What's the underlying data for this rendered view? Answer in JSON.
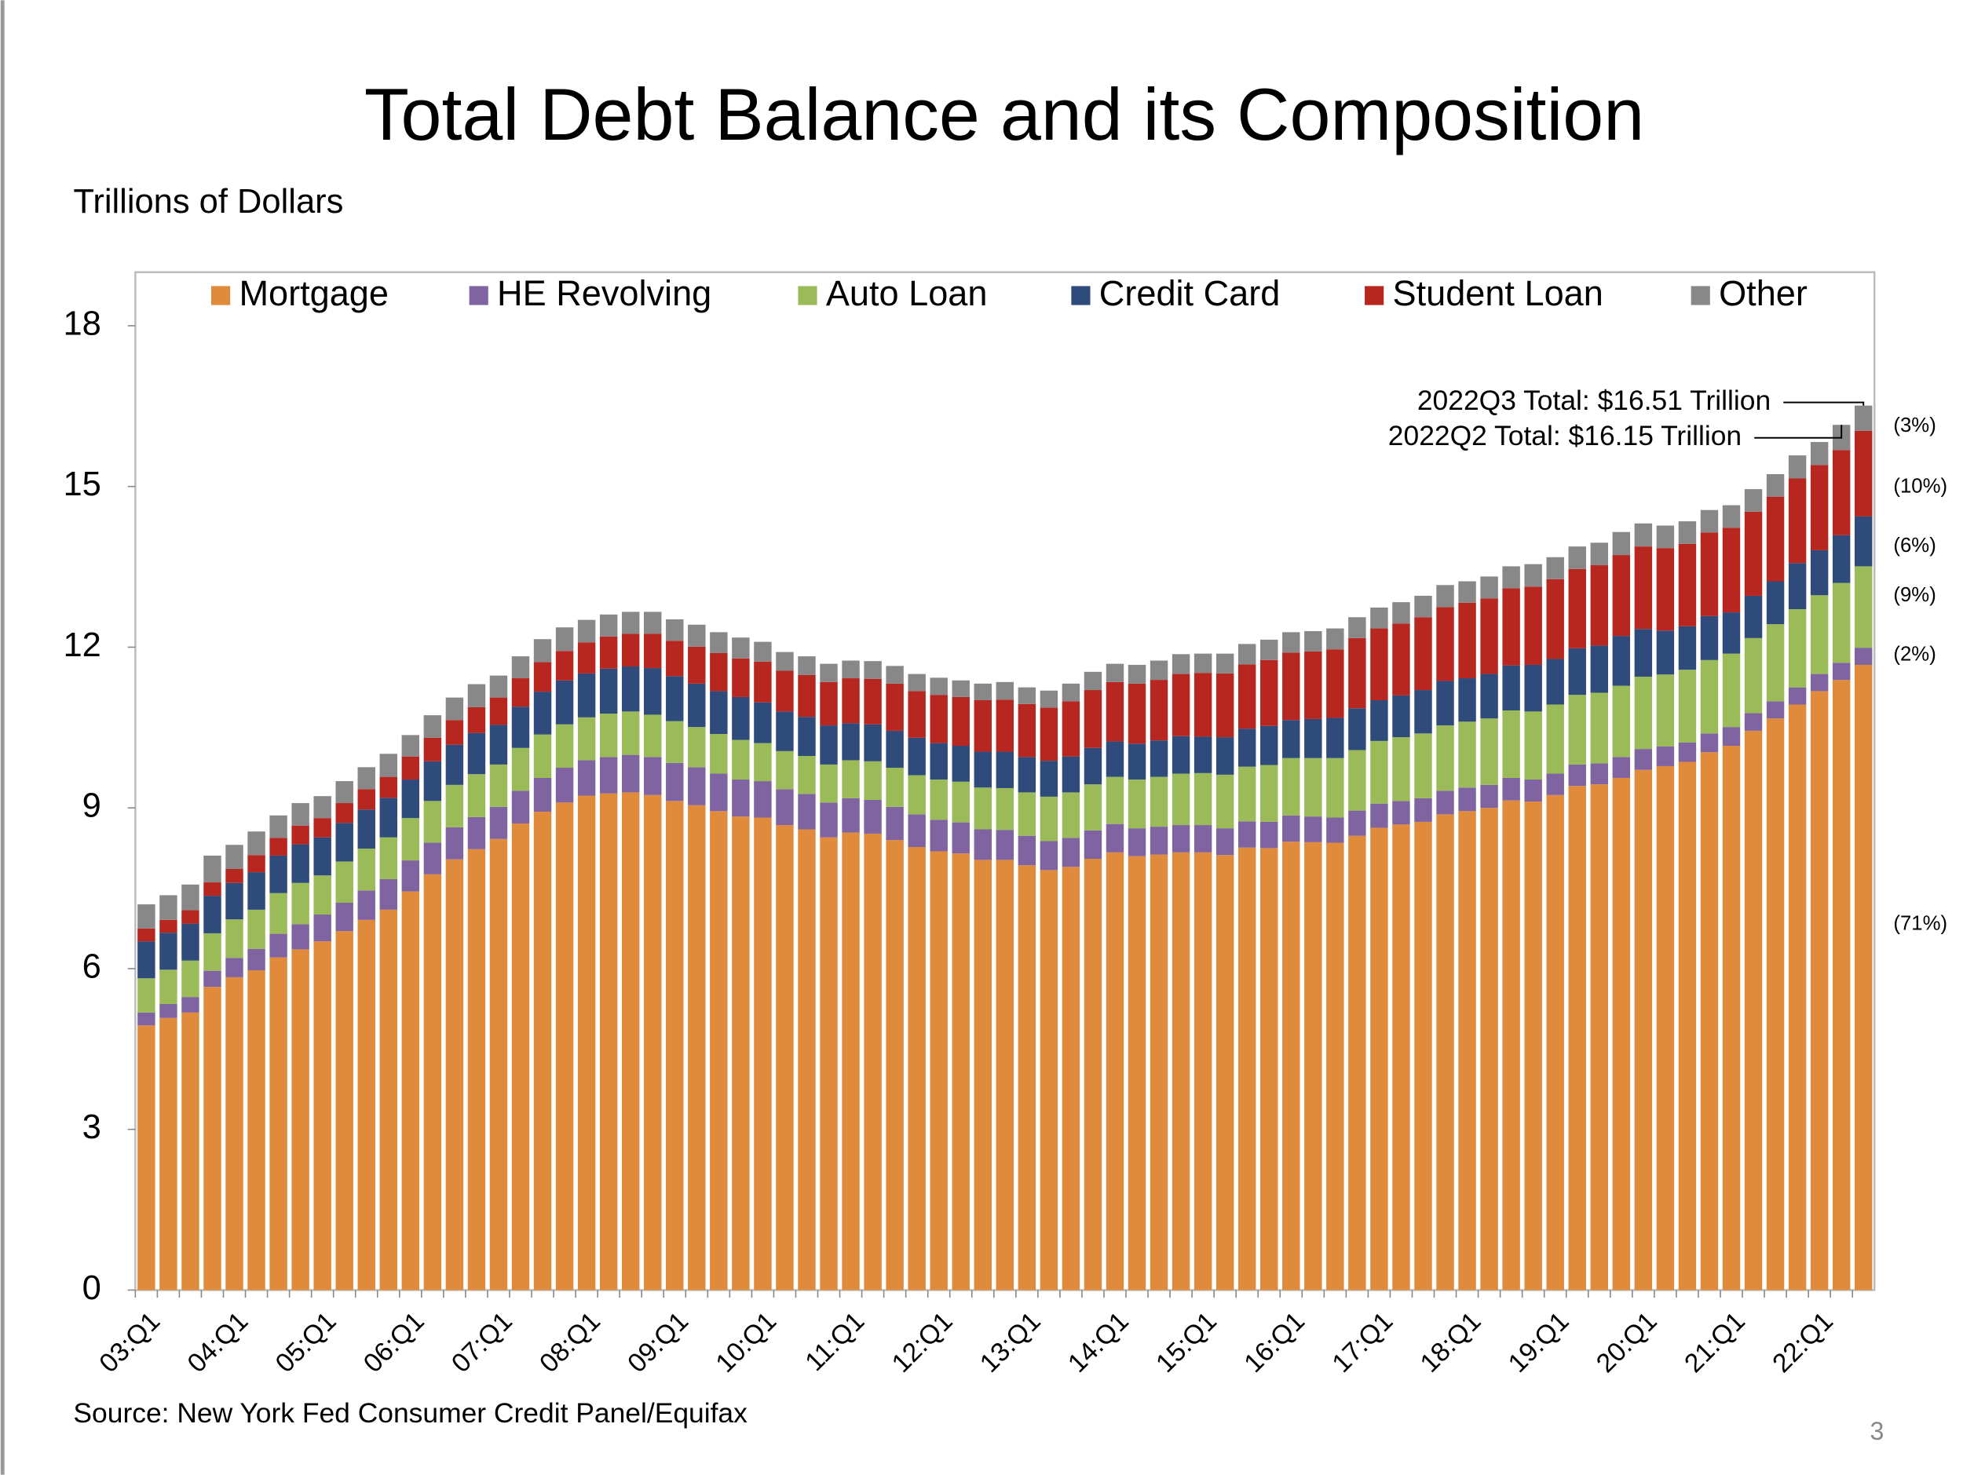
{
  "chart_data": {
    "type": "stacked_bar",
    "title": "Total Debt Balance and its Composition",
    "y_label": "Trillions of Dollars",
    "source": "Source: New York Fed Consumer Credit Panel/Equifax",
    "page_number": "3",
    "categories": [
      "03:Q1",
      null,
      null,
      null,
      "04:Q1",
      null,
      null,
      null,
      "05:Q1",
      null,
      null,
      null,
      "06:Q1",
      null,
      null,
      null,
      "07:Q1",
      null,
      null,
      null,
      "08:Q1",
      null,
      null,
      null,
      "09:Q1",
      null,
      null,
      null,
      "10:Q1",
      null,
      null,
      null,
      "11:Q1",
      null,
      null,
      null,
      "12:Q1",
      null,
      null,
      null,
      "13:Q1",
      null,
      null,
      null,
      "14:Q1",
      null,
      null,
      null,
      "15:Q1",
      null,
      null,
      null,
      "16:Q1",
      null,
      null,
      null,
      "17:Q1",
      null,
      null,
      null,
      "18:Q1",
      null,
      null,
      null,
      "19:Q1",
      null,
      null,
      null,
      "20:Q1",
      null,
      null,
      null,
      "21:Q1",
      null,
      null,
      null,
      "22:Q1",
      null,
      null
    ],
    "series": [
      {
        "name": "Mortgage",
        "color": "#e08a3c",
        "values": [
          4.94,
          5.08,
          5.18,
          5.66,
          5.84,
          5.97,
          6.21,
          6.36,
          6.51,
          6.7,
          6.91,
          7.1,
          7.44,
          7.76,
          8.04,
          8.23,
          8.42,
          8.71,
          8.93,
          9.1,
          9.23,
          9.27,
          9.29,
          9.24,
          9.13,
          9.05,
          8.94,
          8.84,
          8.82,
          8.68,
          8.6,
          8.45,
          8.54,
          8.52,
          8.4,
          8.27,
          8.19,
          8.15,
          8.03,
          8.03,
          7.93,
          7.84,
          7.9,
          8.05,
          8.17,
          8.1,
          8.13,
          8.17,
          8.17,
          8.12,
          8.26,
          8.25,
          8.37,
          8.36,
          8.35,
          8.48,
          8.63,
          8.69,
          8.74,
          8.88,
          8.94,
          9.0,
          9.14,
          9.12,
          9.24,
          9.41,
          9.44,
          9.56,
          9.71,
          9.78,
          9.86,
          10.04,
          10.16,
          10.44,
          10.67,
          10.93,
          11.18,
          11.39,
          11.67
        ]
      },
      {
        "name": "HE Revolving",
        "color": "#8064a2",
        "values": [
          0.24,
          0.26,
          0.29,
          0.3,
          0.36,
          0.4,
          0.44,
          0.47,
          0.5,
          0.53,
          0.55,
          0.57,
          0.58,
          0.59,
          0.6,
          0.6,
          0.6,
          0.61,
          0.63,
          0.65,
          0.66,
          0.68,
          0.7,
          0.71,
          0.71,
          0.71,
          0.7,
          0.69,
          0.68,
          0.67,
          0.66,
          0.65,
          0.64,
          0.63,
          0.62,
          0.61,
          0.59,
          0.58,
          0.57,
          0.56,
          0.55,
          0.54,
          0.54,
          0.53,
          0.53,
          0.52,
          0.52,
          0.51,
          0.51,
          0.5,
          0.49,
          0.49,
          0.49,
          0.48,
          0.47,
          0.47,
          0.45,
          0.44,
          0.44,
          0.44,
          0.44,
          0.43,
          0.42,
          0.41,
          0.4,
          0.4,
          0.39,
          0.39,
          0.39,
          0.37,
          0.36,
          0.35,
          0.35,
          0.33,
          0.32,
          0.32,
          0.32,
          0.32,
          0.32
        ]
      },
      {
        "name": "Auto Loan",
        "color": "#9bbb59",
        "values": [
          0.64,
          0.64,
          0.68,
          0.7,
          0.72,
          0.73,
          0.76,
          0.77,
          0.73,
          0.77,
          0.78,
          0.78,
          0.79,
          0.78,
          0.79,
          0.8,
          0.79,
          0.8,
          0.81,
          0.81,
          0.8,
          0.81,
          0.81,
          0.79,
          0.78,
          0.75,
          0.74,
          0.74,
          0.71,
          0.71,
          0.71,
          0.71,
          0.71,
          0.72,
          0.73,
          0.73,
          0.75,
          0.76,
          0.78,
          0.78,
          0.81,
          0.83,
          0.85,
          0.86,
          0.88,
          0.91,
          0.93,
          0.96,
          0.97,
          1.0,
          1.02,
          1.06,
          1.07,
          1.09,
          1.11,
          1.13,
          1.17,
          1.19,
          1.21,
          1.22,
          1.23,
          1.24,
          1.26,
          1.27,
          1.29,
          1.3,
          1.32,
          1.33,
          1.35,
          1.34,
          1.36,
          1.37,
          1.37,
          1.4,
          1.44,
          1.46,
          1.47,
          1.49,
          1.52
        ]
      },
      {
        "name": "Credit Card",
        "color": "#2e4b7c",
        "values": [
          0.69,
          0.69,
          0.69,
          0.7,
          0.68,
          0.7,
          0.7,
          0.72,
          0.71,
          0.72,
          0.73,
          0.74,
          0.72,
          0.74,
          0.75,
          0.77,
          0.74,
          0.77,
          0.8,
          0.82,
          0.82,
          0.84,
          0.84,
          0.87,
          0.84,
          0.81,
          0.8,
          0.8,
          0.76,
          0.74,
          0.73,
          0.73,
          0.69,
          0.69,
          0.69,
          0.7,
          0.68,
          0.67,
          0.67,
          0.68,
          0.66,
          0.67,
          0.67,
          0.68,
          0.66,
          0.67,
          0.68,
          0.7,
          0.68,
          0.7,
          0.71,
          0.73,
          0.71,
          0.73,
          0.75,
          0.78,
          0.76,
          0.78,
          0.81,
          0.83,
          0.81,
          0.83,
          0.84,
          0.87,
          0.85,
          0.87,
          0.88,
          0.93,
          0.89,
          0.82,
          0.81,
          0.82,
          0.77,
          0.79,
          0.8,
          0.86,
          0.84,
          0.89,
          0.93
        ]
      },
      {
        "name": "Student Loan",
        "color": "#b7261f",
        "values": [
          0.24,
          0.24,
          0.25,
          0.25,
          0.26,
          0.32,
          0.33,
          0.35,
          0.36,
          0.37,
          0.38,
          0.39,
          0.43,
          0.44,
          0.46,
          0.48,
          0.51,
          0.53,
          0.55,
          0.55,
          0.58,
          0.6,
          0.61,
          0.64,
          0.66,
          0.69,
          0.71,
          0.72,
          0.76,
          0.76,
          0.78,
          0.81,
          0.84,
          0.85,
          0.88,
          0.87,
          0.9,
          0.91,
          0.96,
          0.97,
          0.99,
          0.99,
          1.03,
          1.08,
          1.11,
          1.12,
          1.13,
          1.16,
          1.19,
          1.19,
          1.2,
          1.23,
          1.26,
          1.26,
          1.28,
          1.31,
          1.34,
          1.34,
          1.36,
          1.38,
          1.41,
          1.41,
          1.44,
          1.46,
          1.49,
          1.48,
          1.5,
          1.51,
          1.54,
          1.54,
          1.54,
          1.56,
          1.58,
          1.57,
          1.58,
          1.58,
          1.59,
          1.59,
          1.6
        ]
      },
      {
        "name": "Other",
        "color": "#888888",
        "values": [
          0.45,
          0.46,
          0.48,
          0.5,
          0.45,
          0.44,
          0.42,
          0.42,
          0.41,
          0.41,
          0.41,
          0.43,
          0.4,
          0.42,
          0.42,
          0.43,
          0.41,
          0.41,
          0.43,
          0.44,
          0.42,
          0.41,
          0.41,
          0.41,
          0.4,
          0.41,
          0.39,
          0.39,
          0.37,
          0.35,
          0.35,
          0.34,
          0.33,
          0.33,
          0.33,
          0.32,
          0.32,
          0.31,
          0.31,
          0.33,
          0.31,
          0.32,
          0.33,
          0.34,
          0.34,
          0.35,
          0.36,
          0.37,
          0.36,
          0.37,
          0.38,
          0.38,
          0.38,
          0.38,
          0.39,
          0.39,
          0.39,
          0.4,
          0.4,
          0.41,
          0.4,
          0.41,
          0.41,
          0.42,
          0.41,
          0.42,
          0.42,
          0.43,
          0.43,
          0.42,
          0.42,
          0.42,
          0.42,
          0.42,
          0.42,
          0.43,
          0.43,
          0.47,
          0.47
        ]
      }
    ],
    "ylim": [
      0,
      19
    ],
    "yticks": [
      0,
      3,
      6,
      9,
      12,
      15,
      18
    ],
    "annotations": [
      "2022Q3 Total: $16.51 Trillion",
      "2022Q2 Total: $16.15 Trillion"
    ],
    "share_labels": [
      "(3%)",
      "(10%)",
      "(6%)",
      "(9%)",
      "(2%)",
      "(71%)"
    ]
  }
}
